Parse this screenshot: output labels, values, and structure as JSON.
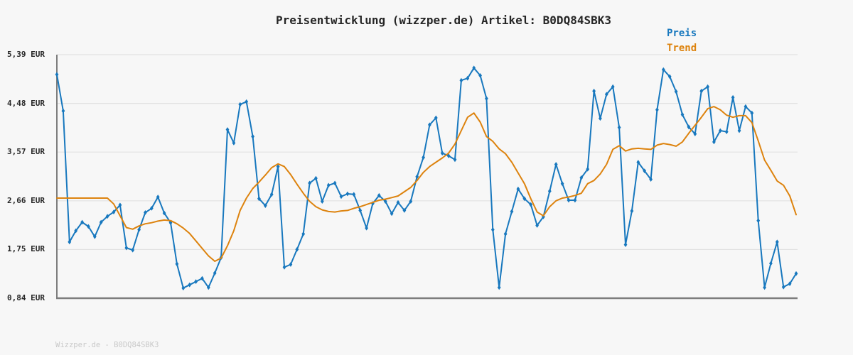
{
  "page": {
    "background": "#f7f7f7"
  },
  "chart": {
    "title": "Preisentwicklung (wizzper.de) Artikel: B0DQ84SBK3",
    "legend": [
      {
        "label": "Preis",
        "color": "#1878be"
      },
      {
        "label": "Trend",
        "color": "#dd830e"
      }
    ],
    "y_axis_labels": [
      "5,39 EUR",
      "4,48 EUR",
      "3,57 EUR",
      "2,66 EUR",
      "1,75 EUR",
      "0,84 EUR"
    ]
  },
  "footer": {
    "text": "Wizzper.de - B0DQ84SBK3"
  },
  "colors": {
    "preis_line": "#1878be",
    "trend_line": "#dd830e",
    "axis": "#7d7d7d",
    "grid": "#e2e2e2",
    "title_text": "#262626",
    "watermark_text": "#c9c9c9",
    "background": "#f7f7f7"
  },
  "chart_data": {
    "type": "line",
    "title": "Preisentwicklung (wizzper.de) Artikel: B0DQ84SBK3",
    "ylabel": "EUR",
    "currency": "EUR",
    "ylim": [
      0.84,
      5.39
    ],
    "y_tick_values": [
      5.39,
      4.48,
      3.57,
      2.66,
      1.75,
      0.84
    ],
    "x_tick_labels": [],
    "grid": "horizontal",
    "legend_position": "top-right",
    "series": [
      {
        "name": "Preis",
        "color": "#1878be",
        "style": "line-with-diamond-markers",
        "values_eur": [
          5.02,
          4.34,
          1.89,
          2.1,
          2.26,
          2.18,
          1.99,
          2.26,
          2.37,
          2.45,
          2.58,
          1.78,
          1.74,
          2.12,
          2.44,
          2.52,
          2.73,
          2.43,
          2.25,
          1.48,
          1.03,
          1.09,
          1.15,
          1.21,
          1.04,
          1.31,
          1.6,
          3.99,
          3.74,
          4.46,
          4.51,
          3.86,
          2.7,
          2.57,
          2.78,
          3.3,
          1.42,
          1.47,
          1.75,
          2.04,
          2.99,
          3.08,
          2.65,
          2.95,
          2.99,
          2.74,
          2.79,
          2.78,
          2.48,
          2.15,
          2.61,
          2.76,
          2.65,
          2.42,
          2.63,
          2.48,
          2.65,
          3.11,
          3.47,
          4.08,
          4.21,
          3.55,
          3.5,
          3.43,
          4.91,
          4.95,
          5.14,
          5.0,
          4.57,
          2.12,
          1.04,
          2.04,
          2.46,
          2.88,
          2.7,
          2.59,
          2.2,
          2.36,
          2.84,
          3.34,
          2.98,
          2.67,
          2.67,
          3.09,
          3.25,
          4.71,
          4.2,
          4.65,
          4.79,
          4.03,
          1.84,
          2.47,
          3.38,
          3.22,
          3.06,
          4.36,
          5.11,
          4.98,
          4.7,
          4.27,
          4.04,
          3.91,
          4.71,
          4.79,
          3.76,
          3.97,
          3.95,
          4.59,
          3.97,
          4.42,
          4.3,
          2.29,
          1.04,
          1.49,
          1.89,
          1.05,
          1.11,
          1.3
        ]
      },
      {
        "name": "Trend",
        "color": "#dd830e",
        "style": "smooth-line-no-markers",
        "values_eur": [
          2.71,
          2.71,
          2.71,
          2.71,
          2.71,
          2.71,
          2.71,
          2.71,
          2.71,
          2.6,
          2.38,
          2.16,
          2.13,
          2.19,
          2.23,
          2.25,
          2.28,
          2.3,
          2.29,
          2.23,
          2.15,
          2.05,
          1.91,
          1.77,
          1.63,
          1.53,
          1.59,
          1.82,
          2.1,
          2.48,
          2.71,
          2.89,
          3.01,
          3.14,
          3.28,
          3.35,
          3.3,
          3.15,
          2.97,
          2.8,
          2.65,
          2.55,
          2.49,
          2.46,
          2.45,
          2.47,
          2.48,
          2.52,
          2.55,
          2.59,
          2.63,
          2.67,
          2.69,
          2.72,
          2.75,
          2.83,
          2.91,
          3.04,
          3.19,
          3.3,
          3.38,
          3.46,
          3.55,
          3.72,
          3.97,
          4.22,
          4.3,
          4.13,
          3.86,
          3.77,
          3.63,
          3.54,
          3.38,
          3.18,
          2.98,
          2.7,
          2.45,
          2.38,
          2.55,
          2.66,
          2.71,
          2.73,
          2.76,
          2.8,
          2.98,
          3.04,
          3.16,
          3.34,
          3.62,
          3.69,
          3.59,
          3.63,
          3.64,
          3.63,
          3.62,
          3.7,
          3.73,
          3.71,
          3.68,
          3.76,
          3.92,
          4.07,
          4.22,
          4.38,
          4.42,
          4.36,
          4.26,
          4.22,
          4.25,
          4.25,
          4.12,
          3.78,
          3.42,
          3.23,
          3.03,
          2.95,
          2.75,
          2.4
        ]
      }
    ]
  }
}
